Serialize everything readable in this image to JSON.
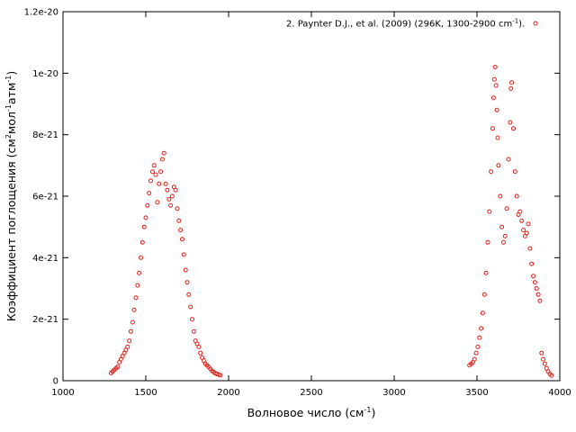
{
  "chart_data": {
    "type": "scatter",
    "title": "",
    "xlabel": {
      "main": "Волновое число (см",
      "sup": "-1",
      "end": ")"
    },
    "ylabel": {
      "a": "Коэффициент поглощения (см",
      "s1": "2",
      "b": "мол",
      "s2": "-1",
      "c": "атм",
      "s3": "-1",
      "d": ")"
    },
    "xlim": [
      1000,
      4000
    ],
    "ylim": [
      0,
      1.2e-20
    ],
    "xticks": [
      1000,
      1500,
      2000,
      2500,
      3000,
      3500,
      4000
    ],
    "xtick_labels": [
      "1000",
      "1500",
      "2000",
      "2500",
      "3000",
      "3500",
      "4000"
    ],
    "yticks": [
      0,
      2e-21,
      4e-21,
      6e-21,
      8e-21,
      1e-20,
      1.2e-20
    ],
    "ytick_labels": [
      "0",
      "2e-21",
      "4e-21",
      "6e-21",
      "8e-21",
      "1e-20",
      "1.2e-20"
    ],
    "grid": false,
    "legend_position": "top-right",
    "series": [
      {
        "name": "2. Paynter D.J., et al. (2009) (296K, 1300-2900 cm-1).",
        "legend": {
          "main": "2. Paynter D.J., et al. (2009) (296K, 1300-2900 cm",
          "sup": "-1",
          "end": ")."
        },
        "color": "#e0201a",
        "marker": "open-circle",
        "x": [
          1290,
          1300,
          1310,
          1320,
          1330,
          1340,
          1350,
          1360,
          1370,
          1380,
          1390,
          1400,
          1410,
          1420,
          1430,
          1440,
          1450,
          1460,
          1470,
          1480,
          1490,
          1500,
          1510,
          1520,
          1530,
          1540,
          1550,
          1560,
          1570,
          1580,
          1590,
          1600,
          1610,
          1620,
          1630,
          1640,
          1650,
          1660,
          1670,
          1680,
          1690,
          1700,
          1710,
          1720,
          1730,
          1740,
          1750,
          1760,
          1770,
          1780,
          1790,
          1800,
          1810,
          1820,
          1830,
          1840,
          1850,
          1860,
          1870,
          1880,
          1890,
          1900,
          1910,
          1920,
          1930,
          1940,
          1950,
          3455,
          3465,
          3475,
          3485,
          3495,
          3505,
          3515,
          3525,
          3535,
          3545,
          3555,
          3565,
          3575,
          3585,
          3595,
          3600,
          3605,
          3610,
          3615,
          3620,
          3625,
          3630,
          3640,
          3650,
          3660,
          3670,
          3680,
          3690,
          3700,
          3705,
          3710,
          3720,
          3730,
          3740,
          3750,
          3760,
          3770,
          3780,
          3790,
          3800,
          3810,
          3820,
          3830,
          3840,
          3850,
          3860,
          3870,
          3880,
          3890,
          3900,
          3910,
          3920,
          3930,
          3940,
          3950
        ],
        "y": [
          2.5e-22,
          3e-22,
          3.5e-22,
          4e-22,
          4.5e-22,
          6e-22,
          7e-22,
          8e-22,
          9e-22,
          1e-21,
          1.1e-21,
          1.3e-21,
          1.6e-21,
          1.9e-21,
          2.3e-21,
          2.7e-21,
          3.1e-21,
          3.5e-21,
          4e-21,
          4.5e-21,
          5e-21,
          5.3e-21,
          5.7e-21,
          6.1e-21,
          6.5e-21,
          6.8e-21,
          7e-21,
          6.7e-21,
          5.8e-21,
          6.4e-21,
          6.8e-21,
          7.2e-21,
          7.4e-21,
          6.4e-21,
          6.2e-21,
          5.9e-21,
          5.7e-21,
          6e-21,
          6.3e-21,
          6.2e-21,
          5.6e-21,
          5.2e-21,
          4.9e-21,
          4.6e-21,
          4.1e-21,
          3.6e-21,
          3.2e-21,
          2.8e-21,
          2.4e-21,
          2e-21,
          1.6e-21,
          1.3e-21,
          1.2e-21,
          1.1e-21,
          9e-22,
          7.5e-22,
          6.5e-22,
          5.5e-22,
          5e-22,
          4.5e-22,
          3.8e-22,
          3.2e-22,
          2.8e-22,
          2.4e-22,
          2.2e-22,
          2e-22,
          1.8e-22,
          5e-22,
          5.5e-22,
          6e-22,
          7e-22,
          9e-22,
          1.1e-21,
          1.4e-21,
          1.7e-21,
          2.2e-21,
          2.8e-21,
          3.5e-21,
          4.5e-21,
          5.5e-21,
          6.8e-21,
          8.2e-21,
          9.2e-21,
          9.8e-21,
          1.02e-20,
          9.6e-21,
          8.8e-21,
          7.9e-21,
          7e-21,
          6e-21,
          5e-21,
          4.5e-21,
          4.7e-21,
          5.6e-21,
          7.2e-21,
          8.4e-21,
          9.5e-21,
          9.7e-21,
          8.2e-21,
          6.8e-21,
          6e-21,
          5.4e-21,
          5.5e-21,
          5.2e-21,
          4.9e-21,
          4.7e-21,
          4.8e-21,
          5.1e-21,
          4.3e-21,
          3.8e-21,
          3.4e-21,
          3.2e-21,
          3e-21,
          2.8e-21,
          2.6e-21,
          9e-22,
          7e-22,
          5.5e-22,
          4e-22,
          3e-22,
          2.2e-22,
          1.7e-22
        ]
      }
    ]
  }
}
